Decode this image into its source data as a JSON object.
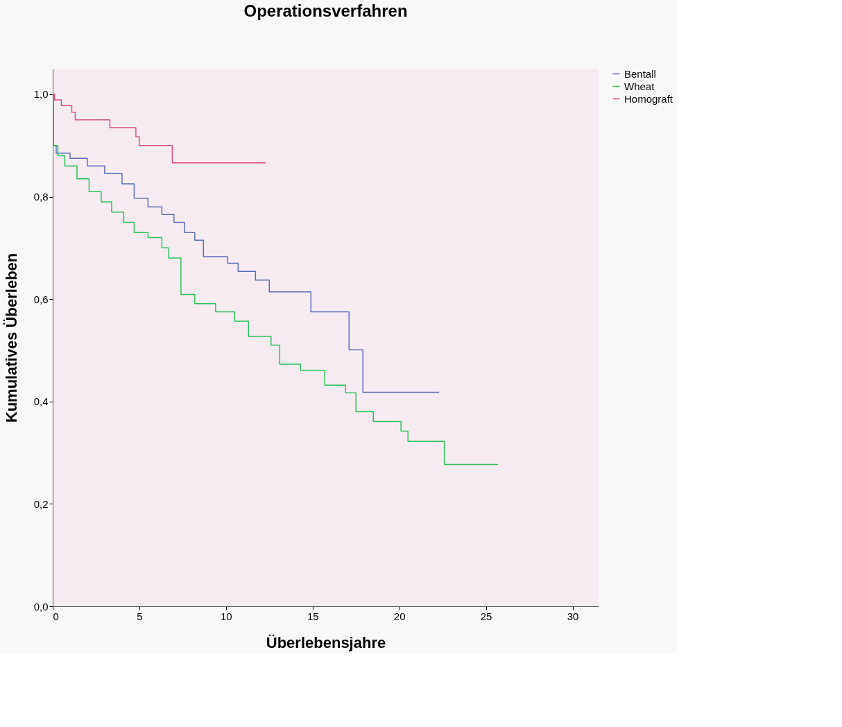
{
  "chart_data": {
    "type": "step",
    "title": "Operationsverfahren",
    "xlabel": "Überlebensjahre",
    "ylabel": "Kumulatives Überleben",
    "xlim": [
      0,
      31.5
    ],
    "ylim": [
      0,
      1.05
    ],
    "xticks": [
      0,
      5,
      10,
      15,
      20,
      25,
      30
    ],
    "yticks": [
      {
        "value": 0,
        "label": "0,0"
      },
      {
        "value": 0.2,
        "label": "0,2"
      },
      {
        "value": 0.4,
        "label": "0,4"
      },
      {
        "value": 0.6,
        "label": "0,6"
      },
      {
        "value": 0.8,
        "label": "0,8"
      },
      {
        "value": 1.0,
        "label": "1,0"
      }
    ],
    "grid": false,
    "legend": "top right",
    "marker": "none",
    "line_style": "solid",
    "series": [
      {
        "name": "Bentall",
        "color": "#5a6fb5",
        "x": [
          0,
          0.05,
          0.2,
          1,
          2,
          3,
          4,
          4.7,
          5.5,
          6.3,
          7,
          7.6,
          8.2,
          8.7,
          10.1,
          10.7,
          11.7,
          12.5,
          14.9,
          17.1,
          17.9,
          22.3
        ],
        "values": [
          1.0,
          0.9,
          0.885,
          0.875,
          0.86,
          0.845,
          0.825,
          0.797,
          0.78,
          0.765,
          0.75,
          0.73,
          0.715,
          0.683,
          0.67,
          0.654,
          0.637,
          0.614,
          0.575,
          0.501,
          0.418,
          0.418
        ]
      },
      {
        "name": "Wheat",
        "color": "#2ec25a",
        "x": [
          0,
          0.05,
          0.3,
          0.7,
          1.4,
          2.1,
          2.8,
          3.4,
          4.1,
          4.7,
          5.5,
          6.3,
          6.7,
          7.4,
          8.2,
          9.4,
          10.5,
          11.3,
          12.6,
          13.1,
          14.3,
          15.7,
          16.9,
          17.5,
          18.5,
          20.1,
          20.5,
          22.6,
          25.7
        ],
        "values": [
          1.0,
          0.9,
          0.88,
          0.86,
          0.835,
          0.81,
          0.79,
          0.77,
          0.75,
          0.73,
          0.72,
          0.7,
          0.68,
          0.609,
          0.591,
          0.575,
          0.557,
          0.527,
          0.51,
          0.473,
          0.461,
          0.432,
          0.417,
          0.38,
          0.361,
          0.342,
          0.322,
          0.277,
          0.277
        ]
      },
      {
        "name": "Homograft",
        "color": "#d94f7c",
        "x": [
          0,
          0.1,
          0.5,
          1.1,
          1.3,
          3.3,
          4.8,
          5.0,
          6.9,
          12.3
        ],
        "values": [
          1.0,
          0.989,
          0.978,
          0.965,
          0.95,
          0.935,
          0.917,
          0.9,
          0.866,
          0.866
        ]
      }
    ]
  }
}
